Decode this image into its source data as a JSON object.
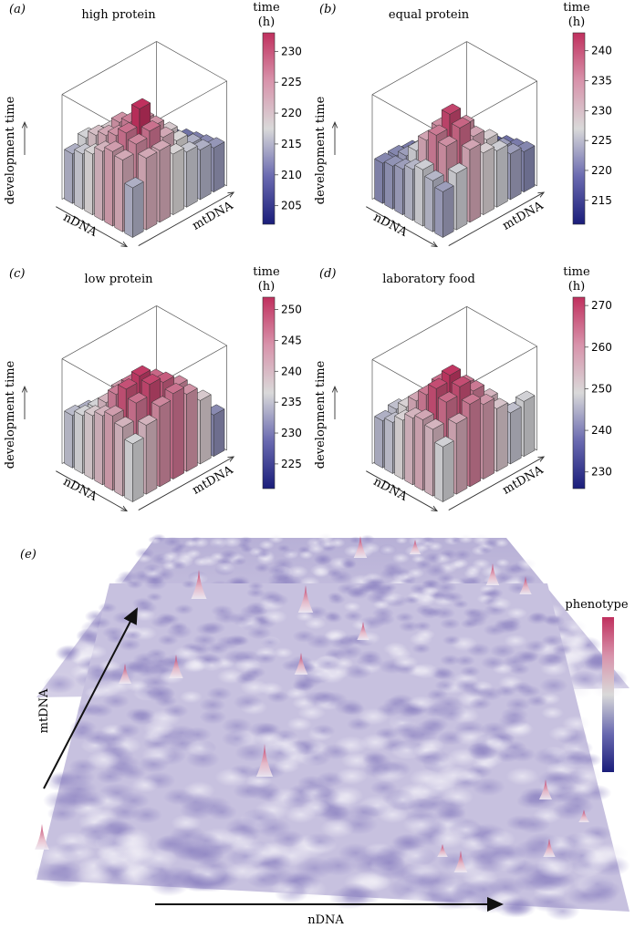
{
  "colors": {
    "low": "#1a1d7a",
    "mid": "#d9d9d9",
    "high": "#c0305e"
  },
  "chart_data": [
    {
      "id": "a",
      "type": "bar3d",
      "panel_label": "(a)",
      "title": "high protein",
      "xlabel": "nDNA",
      "ylabel": "mtDNA",
      "zlabel": "development time",
      "colorbar": {
        "title_top": "time",
        "title_bottom": "(h)",
        "ticks": [
          "230",
          "225",
          "220",
          "215",
          "210",
          "205"
        ],
        "range": [
          202,
          233
        ]
      },
      "grid": [
        [
          214,
          222,
          222,
          218,
          216,
          214,
          212
        ],
        [
          222,
          225,
          227,
          222,
          218,
          214,
          211
        ],
        [
          223,
          227,
          233,
          224,
          219,
          212,
          210
        ],
        [
          221,
          224,
          226,
          224,
          217,
          210,
          209
        ],
        [
          218,
          222,
          224,
          220,
          214,
          208,
          207
        ],
        [
          216,
          220,
          219,
          215,
          212,
          207,
          206
        ],
        [
          214,
          217,
          215,
          212,
          210,
          206,
          205
        ]
      ]
    },
    {
      "id": "b",
      "type": "bar3d",
      "panel_label": "(b)",
      "title": "equal protein",
      "xlabel": "nDNA",
      "ylabel": "mtDNA",
      "zlabel": "development time",
      "colorbar": {
        "title_top": "time",
        "title_bottom": "(h)",
        "ticks": [
          "240",
          "235",
          "230",
          "225",
          "220",
          "215"
        ],
        "range": [
          211,
          243
        ]
      },
      "grid": [
        [
          222,
          226,
          232,
          228,
          226,
          222,
          220
        ],
        [
          224,
          234,
          238,
          232,
          228,
          222,
          219
        ],
        [
          226,
          236,
          241,
          234,
          226,
          220,
          218
        ],
        [
          224,
          232,
          234,
          228,
          222,
          216,
          216
        ],
        [
          222,
          226,
          227,
          222,
          218,
          214,
          214
        ],
        [
          221,
          222,
          222,
          218,
          216,
          213,
          214
        ],
        [
          220,
          220,
          219,
          216,
          214,
          214,
          215
        ]
      ]
    },
    {
      "id": "c",
      "type": "bar3d",
      "panel_label": "(c)",
      "title": "low protein",
      "xlabel": "nDNA",
      "ylabel": "mtDNA",
      "zlabel": "development time",
      "colorbar": {
        "title_top": "time",
        "title_bottom": "(h)",
        "ticks": [
          "250",
          "245",
          "240",
          "235",
          "230",
          "225"
        ],
        "range": [
          221,
          252
        ]
      },
      "grid": [
        [
          236,
          240,
          244,
          246,
          243,
          238,
          230
        ],
        [
          240,
          246,
          250,
          248,
          244,
          236,
          228
        ],
        [
          242,
          249,
          251,
          247,
          240,
          232,
          226
        ],
        [
          240,
          245,
          246,
          242,
          236,
          230,
          226
        ],
        [
          238,
          240,
          242,
          236,
          232,
          228,
          225
        ],
        [
          236,
          236,
          235,
          232,
          230,
          228,
          226
        ],
        [
          234,
          233,
          231,
          230,
          229,
          227,
          228
        ]
      ]
    },
    {
      "id": "d",
      "type": "bar3d",
      "panel_label": "(d)",
      "title": "laboratory food",
      "xlabel": "nDNA",
      "ylabel": "mtDNA",
      "zlabel": "development time",
      "colorbar": {
        "title_top": "time",
        "title_bottom": "(h)",
        "ticks": [
          "270",
          "260",
          "250",
          "240",
          "230"
        ],
        "range": [
          226,
          272
        ]
      },
      "grid": [
        [
          248,
          256,
          262,
          258,
          252,
          246,
          248
        ],
        [
          254,
          264,
          268,
          262,
          254,
          244,
          240
        ],
        [
          256,
          268,
          271,
          262,
          250,
          240,
          236
        ],
        [
          254,
          262,
          264,
          256,
          244,
          236,
          234
        ],
        [
          250,
          256,
          256,
          248,
          240,
          234,
          232
        ],
        [
          246,
          250,
          248,
          242,
          238,
          232,
          232
        ],
        [
          244,
          246,
          244,
          240,
          236,
          232,
          238
        ]
      ]
    },
    {
      "id": "e",
      "type": "surface",
      "panel_label": "(e)",
      "xlabel": "nDNA",
      "ylabel": "mtDNA",
      "colorbar": {
        "title": "phenotype"
      }
    }
  ]
}
